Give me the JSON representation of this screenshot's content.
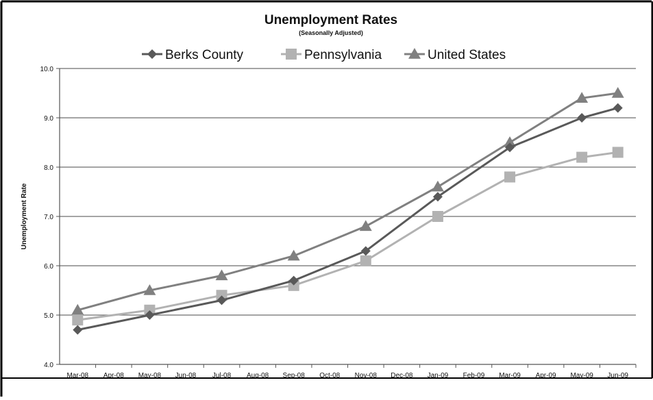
{
  "chart_data": {
    "type": "line",
    "title": "Unemployment Rates",
    "subtitle": "(Seasonally Adjusted)",
    "xlabel": "",
    "ylabel": "Unemployment Rate",
    "ylim": [
      4.0,
      10.0
    ],
    "yticks": [
      4.0,
      5.0,
      6.0,
      7.0,
      8.0,
      9.0,
      10.0
    ],
    "grid": true,
    "legend_position": "top",
    "categories": [
      "Mar-08",
      "Apr-08",
      "May-08",
      "Jun-08",
      "Jul-08",
      "Aug-08",
      "Sep-08",
      "Oct-08",
      "Nov-08",
      "Dec-08",
      "Jan-09",
      "Feb-09",
      "Mar-09",
      "Apr-09",
      "May-09",
      "Jun-09"
    ],
    "series": [
      {
        "name": "Berks County",
        "color": "#595959",
        "marker": "diamond",
        "points": [
          {
            "x": "Mar-08",
            "y": 4.7
          },
          {
            "x": "May-08",
            "y": 5.0
          },
          {
            "x": "Jul-08",
            "y": 5.3
          },
          {
            "x": "Sep-08",
            "y": 5.7
          },
          {
            "x": "Nov-08",
            "y": 6.3
          },
          {
            "x": "Jan-09",
            "y": 7.4
          },
          {
            "x": "Mar-09",
            "y": 8.4
          },
          {
            "x": "May-09",
            "y": 9.0
          },
          {
            "x": "Jun-09",
            "y": 9.2
          }
        ]
      },
      {
        "name": "Pennsylvania",
        "color": "#b2b2b2",
        "marker": "square",
        "points": [
          {
            "x": "Mar-08",
            "y": 4.9
          },
          {
            "x": "May-08",
            "y": 5.1
          },
          {
            "x": "Jul-08",
            "y": 5.4
          },
          {
            "x": "Sep-08",
            "y": 5.6
          },
          {
            "x": "Nov-08",
            "y": 6.1
          },
          {
            "x": "Jan-09",
            "y": 7.0
          },
          {
            "x": "Mar-09",
            "y": 7.8
          },
          {
            "x": "May-09",
            "y": 8.2
          },
          {
            "x": "Jun-09",
            "y": 8.3
          }
        ]
      },
      {
        "name": "United States",
        "color": "#808080",
        "marker": "triangle",
        "points": [
          {
            "x": "Mar-08",
            "y": 5.1
          },
          {
            "x": "May-08",
            "y": 5.5
          },
          {
            "x": "Jul-08",
            "y": 5.8
          },
          {
            "x": "Sep-08",
            "y": 6.2
          },
          {
            "x": "Nov-08",
            "y": 6.8
          },
          {
            "x": "Jan-09",
            "y": 7.6
          },
          {
            "x": "Mar-09",
            "y": 8.5
          },
          {
            "x": "May-09",
            "y": 9.4
          },
          {
            "x": "Jun-09",
            "y": 9.5
          }
        ]
      }
    ]
  }
}
